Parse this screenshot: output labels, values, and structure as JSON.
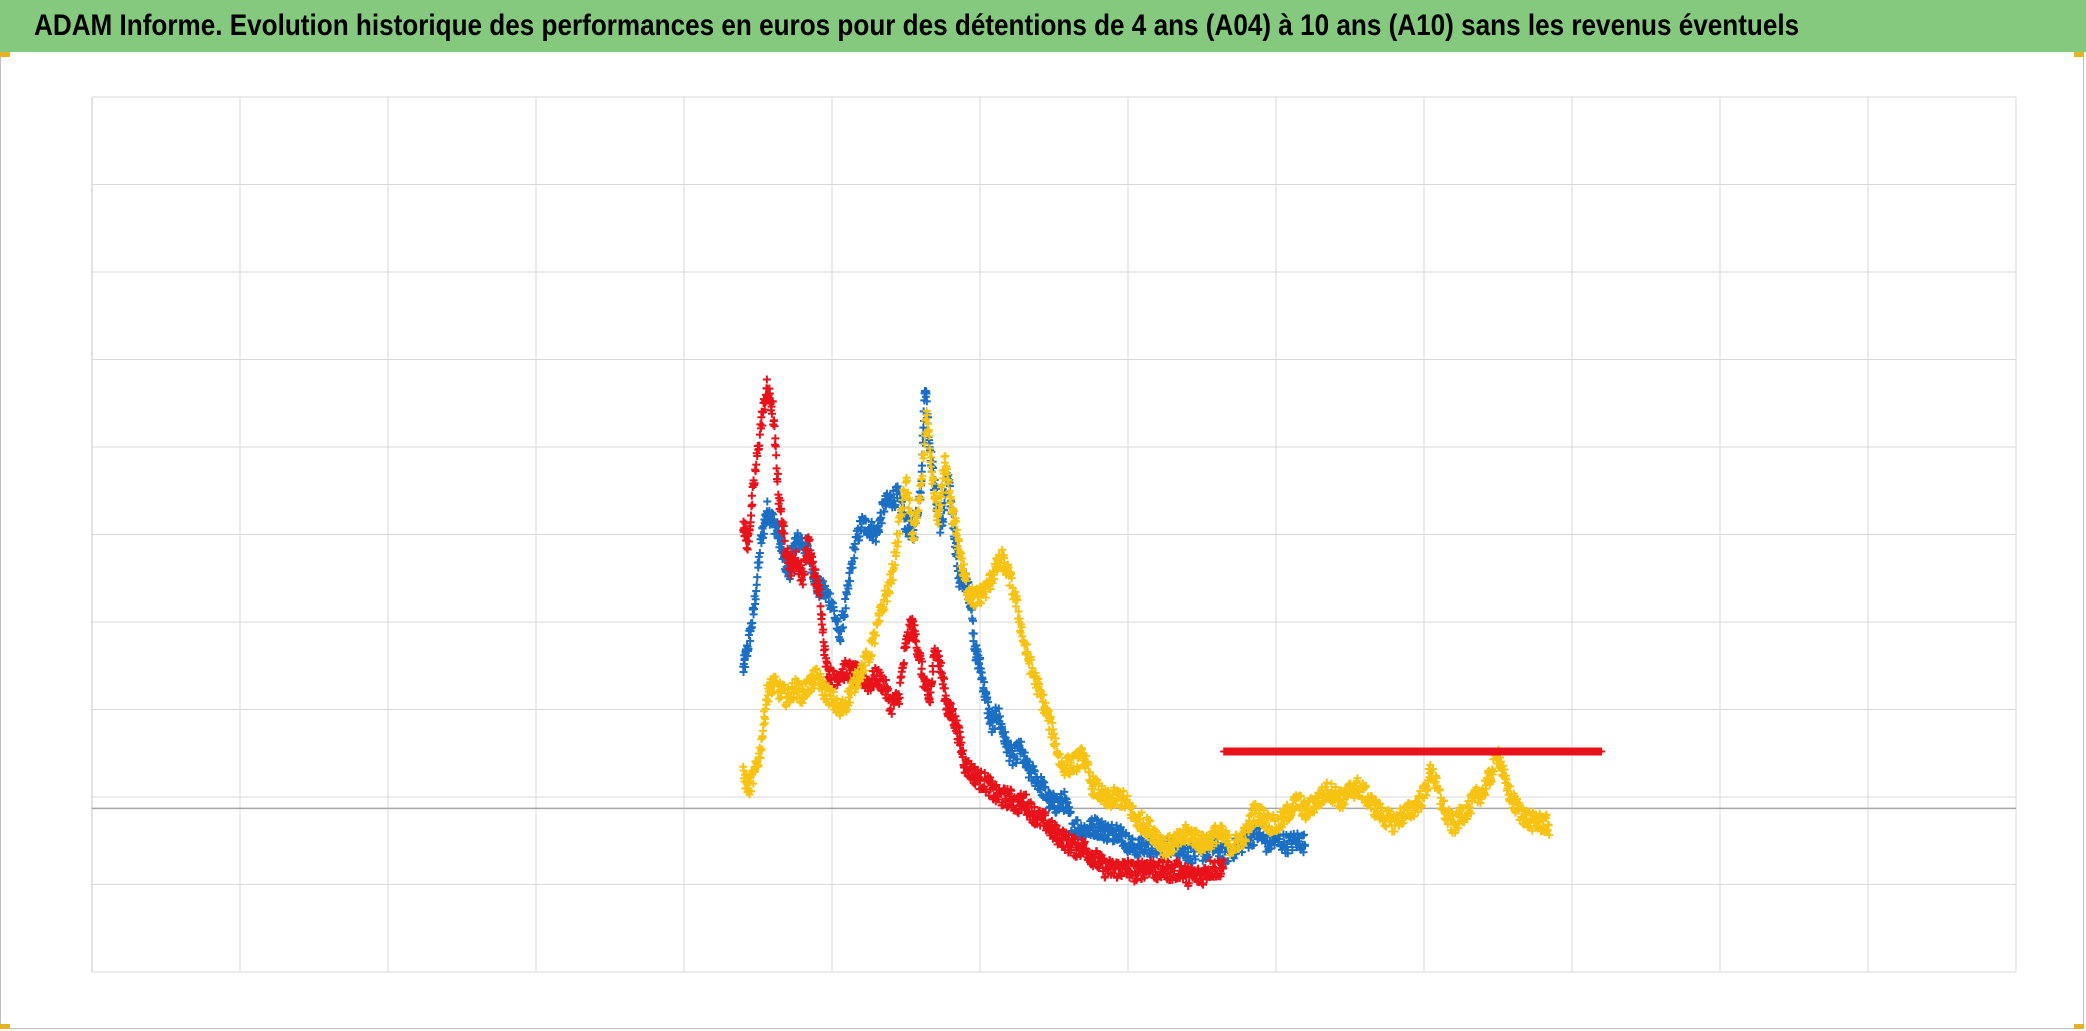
{
  "title": "ADAM Informe. Evolution historique des performances en euros pour des détentions de 4 ans (A04) à 10 ans (A10) sans les revenus éventuels",
  "colors": {
    "title_bg": "#84c97e",
    "grid": "#d9d9d9",
    "zero_line": "#a6a6a6",
    "corner": "#e6b325"
  },
  "chart_data": {
    "type": "scatter",
    "title": "ADAM Informe. Evolution historique des performances en euros pour des détentions de 4 ans (A04) à 10 ans (A10) sans les revenus éventuels",
    "xlabel": "",
    "ylabel": "",
    "xlim": [
      0,
      13
    ],
    "ylim": [
      -2.3,
      10
    ],
    "marker": "plus",
    "grid": true,
    "legend": "none",
    "series": [
      {
        "color": "#1a6fc4",
        "points": [
          [
            4.4,
            1.95
          ],
          [
            4.43,
            2.25
          ],
          [
            4.47,
            2.75
          ],
          [
            4.52,
            3.75
          ],
          [
            4.56,
            4.2
          ],
          [
            4.6,
            4.05
          ],
          [
            4.64,
            3.85
          ],
          [
            4.67,
            3.55
          ],
          [
            4.71,
            3.3
          ],
          [
            4.75,
            3.75
          ],
          [
            4.8,
            3.75
          ],
          [
            4.85,
            3.55
          ],
          [
            4.9,
            3.1
          ],
          [
            4.95,
            3.05
          ],
          [
            5.0,
            2.9
          ],
          [
            5.05,
            2.4
          ],
          [
            5.1,
            2.95
          ],
          [
            5.15,
            3.65
          ],
          [
            5.2,
            4.0
          ],
          [
            5.25,
            3.95
          ],
          [
            5.3,
            3.85
          ],
          [
            5.35,
            4.25
          ],
          [
            5.4,
            4.35
          ],
          [
            5.45,
            4.4
          ],
          [
            5.5,
            4.0
          ],
          [
            5.55,
            3.85
          ],
          [
            5.6,
            4.5
          ],
          [
            5.63,
            6.0
          ],
          [
            5.66,
            5.1
          ],
          [
            5.7,
            4.4
          ],
          [
            5.74,
            3.9
          ],
          [
            5.78,
            4.7
          ],
          [
            5.82,
            4.0
          ],
          [
            5.86,
            3.2
          ],
          [
            5.9,
            3.2
          ],
          [
            5.93,
            3.0
          ],
          [
            5.97,
            2.2
          ],
          [
            6.0,
            2.0
          ],
          [
            6.04,
            1.55
          ],
          [
            6.08,
            1.15
          ],
          [
            6.12,
            1.35
          ],
          [
            6.17,
            0.95
          ],
          [
            6.22,
            0.7
          ],
          [
            6.27,
            0.85
          ],
          [
            6.32,
            0.55
          ],
          [
            6.37,
            0.45
          ],
          [
            6.42,
            0.3
          ],
          [
            6.47,
            0.1
          ],
          [
            6.52,
            0.05
          ],
          [
            6.57,
            0.1
          ],
          [
            6.62,
            -0.2
          ],
          [
            6.68,
            -0.3
          ],
          [
            6.73,
            -0.3
          ],
          [
            6.78,
            -0.25
          ],
          [
            6.83,
            -0.3
          ],
          [
            6.88,
            -0.35
          ],
          [
            6.93,
            -0.3
          ],
          [
            6.98,
            -0.45
          ],
          [
            7.03,
            -0.55
          ],
          [
            7.1,
            -0.55
          ],
          [
            7.17,
            -0.55
          ],
          [
            7.24,
            -0.55
          ],
          [
            7.31,
            -0.5
          ],
          [
            7.38,
            -0.6
          ],
          [
            7.45,
            -0.65
          ],
          [
            7.52,
            -0.6
          ],
          [
            7.59,
            -0.55
          ],
          [
            7.66,
            -0.65
          ],
          [
            7.73,
            -0.55
          ],
          [
            7.8,
            -0.45
          ],
          [
            7.87,
            -0.35
          ],
          [
            7.94,
            -0.5
          ],
          [
            8.01,
            -0.45
          ],
          [
            8.08,
            -0.5
          ],
          [
            8.15,
            -0.45
          ],
          [
            8.2,
            -0.5
          ]
        ]
      },
      {
        "color": "#e8121b",
        "points": [
          [
            4.4,
            4.05
          ],
          [
            4.43,
            3.7
          ],
          [
            4.47,
            4.5
          ],
          [
            4.52,
            5.4
          ],
          [
            4.56,
            5.9
          ],
          [
            4.6,
            5.6
          ],
          [
            4.64,
            4.4
          ],
          [
            4.68,
            3.75
          ],
          [
            4.72,
            3.4
          ],
          [
            4.76,
            3.5
          ],
          [
            4.8,
            3.25
          ],
          [
            4.84,
            3.75
          ],
          [
            4.88,
            3.3
          ],
          [
            4.92,
            3.0
          ],
          [
            4.96,
            2.0
          ],
          [
            5.0,
            1.8
          ],
          [
            5.05,
            1.9
          ],
          [
            5.1,
            1.95
          ],
          [
            5.15,
            1.9
          ],
          [
            5.2,
            1.85
          ],
          [
            5.25,
            1.75
          ],
          [
            5.3,
            1.85
          ],
          [
            5.35,
            1.75
          ],
          [
            5.4,
            1.45
          ],
          [
            5.45,
            1.55
          ],
          [
            5.5,
            2.3
          ],
          [
            5.54,
            2.6
          ],
          [
            5.58,
            2.25
          ],
          [
            5.62,
            1.8
          ],
          [
            5.66,
            1.5
          ],
          [
            5.7,
            2.3
          ],
          [
            5.74,
            1.9
          ],
          [
            5.78,
            1.4
          ],
          [
            5.82,
            1.3
          ],
          [
            5.86,
            1.0
          ],
          [
            5.9,
            0.6
          ],
          [
            5.95,
            0.5
          ],
          [
            6.0,
            0.4
          ],
          [
            6.05,
            0.35
          ],
          [
            6.1,
            0.2
          ],
          [
            6.15,
            0.15
          ],
          [
            6.2,
            0.15
          ],
          [
            6.25,
            0.05
          ],
          [
            6.3,
            0.1
          ],
          [
            6.35,
            -0.05
          ],
          [
            6.4,
            -0.15
          ],
          [
            6.45,
            -0.2
          ],
          [
            6.5,
            -0.35
          ],
          [
            6.55,
            -0.4
          ],
          [
            6.6,
            -0.5
          ],
          [
            6.65,
            -0.55
          ],
          [
            6.7,
            -0.55
          ],
          [
            6.75,
            -0.65
          ],
          [
            6.8,
            -0.75
          ],
          [
            6.85,
            -0.85
          ],
          [
            6.9,
            -0.85
          ],
          [
            6.95,
            -0.85
          ],
          [
            7.0,
            -0.85
          ],
          [
            7.05,
            -0.9
          ],
          [
            7.1,
            -0.85
          ],
          [
            7.15,
            -0.8
          ],
          [
            7.2,
            -0.9
          ],
          [
            7.25,
            -0.85
          ],
          [
            7.3,
            -0.9
          ],
          [
            7.35,
            -0.85
          ],
          [
            7.4,
            -0.95
          ],
          [
            7.45,
            -0.95
          ],
          [
            7.5,
            -0.95
          ],
          [
            7.55,
            -0.85
          ],
          [
            7.6,
            -0.85
          ],
          [
            7.65,
            -0.8
          ]
        ]
      },
      {
        "color": "#f7c312",
        "points": [
          [
            4.4,
            0.45
          ],
          [
            4.44,
            0.3
          ],
          [
            4.48,
            0.5
          ],
          [
            4.52,
            0.85
          ],
          [
            4.56,
            1.6
          ],
          [
            4.6,
            1.75
          ],
          [
            4.65,
            1.65
          ],
          [
            4.7,
            1.55
          ],
          [
            4.75,
            1.7
          ],
          [
            4.8,
            1.6
          ],
          [
            4.85,
            1.75
          ],
          [
            4.9,
            1.85
          ],
          [
            4.95,
            1.65
          ],
          [
            5.0,
            1.55
          ],
          [
            5.05,
            1.35
          ],
          [
            5.1,
            1.5
          ],
          [
            5.15,
            1.75
          ],
          [
            5.2,
            1.95
          ],
          [
            5.25,
            2.15
          ],
          [
            5.3,
            2.5
          ],
          [
            5.35,
            2.9
          ],
          [
            5.4,
            3.2
          ],
          [
            5.45,
            3.9
          ],
          [
            5.5,
            4.6
          ],
          [
            5.55,
            3.8
          ],
          [
            5.6,
            4.45
          ],
          [
            5.64,
            5.55
          ],
          [
            5.68,
            4.6
          ],
          [
            5.72,
            4.0
          ],
          [
            5.76,
            4.9
          ],
          [
            5.8,
            4.3
          ],
          [
            5.84,
            3.9
          ],
          [
            5.88,
            3.4
          ],
          [
            5.92,
            3.05
          ],
          [
            5.96,
            2.95
          ],
          [
            6.0,
            3.0
          ],
          [
            6.05,
            3.1
          ],
          [
            6.1,
            3.35
          ],
          [
            6.15,
            3.5
          ],
          [
            6.2,
            3.25
          ],
          [
            6.25,
            2.85
          ],
          [
            6.3,
            2.3
          ],
          [
            6.35,
            1.95
          ],
          [
            6.4,
            1.65
          ],
          [
            6.45,
            1.35
          ],
          [
            6.5,
            1.0
          ],
          [
            6.55,
            0.6
          ],
          [
            6.6,
            0.6
          ],
          [
            6.65,
            0.65
          ],
          [
            6.7,
            0.75
          ],
          [
            6.75,
            0.35
          ],
          [
            6.8,
            0.25
          ],
          [
            6.85,
            0.1
          ],
          [
            6.9,
            0.15
          ],
          [
            6.95,
            0.15
          ],
          [
            7.0,
            0.05
          ],
          [
            7.05,
            -0.15
          ],
          [
            7.1,
            -0.2
          ],
          [
            7.15,
            -0.3
          ],
          [
            7.2,
            -0.4
          ],
          [
            7.25,
            -0.55
          ],
          [
            7.3,
            -0.5
          ],
          [
            7.35,
            -0.45
          ],
          [
            7.4,
            -0.35
          ],
          [
            7.45,
            -0.4
          ],
          [
            7.5,
            -0.5
          ],
          [
            7.55,
            -0.45
          ],
          [
            7.6,
            -0.35
          ],
          [
            7.65,
            -0.4
          ],
          [
            7.7,
            -0.55
          ],
          [
            7.75,
            -0.45
          ],
          [
            7.8,
            -0.35
          ],
          [
            7.85,
            -0.05
          ],
          [
            7.9,
            -0.1
          ],
          [
            7.95,
            -0.2
          ],
          [
            8.0,
            -0.25
          ],
          [
            8.05,
            -0.15
          ],
          [
            8.1,
            0.0
          ],
          [
            8.15,
            0.1
          ],
          [
            8.2,
            -0.05
          ],
          [
            8.25,
            0.05
          ],
          [
            8.3,
            0.15
          ],
          [
            8.35,
            0.25
          ],
          [
            8.4,
            0.2
          ],
          [
            8.45,
            0.1
          ],
          [
            8.5,
            0.25
          ],
          [
            8.55,
            0.3
          ],
          [
            8.6,
            0.2
          ],
          [
            8.65,
            0.05
          ],
          [
            8.7,
            -0.05
          ],
          [
            8.75,
            -0.15
          ],
          [
            8.8,
            -0.2
          ],
          [
            8.85,
            -0.1
          ],
          [
            8.9,
            -0.05
          ],
          [
            8.95,
            0.05
          ],
          [
            9.0,
            0.2
          ],
          [
            9.05,
            0.55
          ],
          [
            9.1,
            0.2
          ],
          [
            9.15,
            -0.1
          ],
          [
            9.2,
            -0.25
          ],
          [
            9.25,
            -0.1
          ],
          [
            9.3,
            0.0
          ],
          [
            9.35,
            0.15
          ],
          [
            9.4,
            0.25
          ],
          [
            9.45,
            0.45
          ],
          [
            9.5,
            0.8
          ],
          [
            9.55,
            0.35
          ],
          [
            9.6,
            0.1
          ],
          [
            9.65,
            -0.05
          ],
          [
            9.7,
            -0.15
          ],
          [
            9.75,
            -0.2
          ],
          [
            9.8,
            -0.2
          ],
          [
            9.85,
            -0.25
          ]
        ]
      },
      {
        "color": "#e8121b",
        "points": [
          [
            7.65,
            0.8
          ],
          [
            8.0,
            0.8
          ],
          [
            8.5,
            0.8
          ],
          [
            9.0,
            0.8
          ],
          [
            9.5,
            0.8
          ],
          [
            10.0,
            0.8
          ],
          [
            10.2,
            0.8
          ]
        ]
      }
    ]
  }
}
